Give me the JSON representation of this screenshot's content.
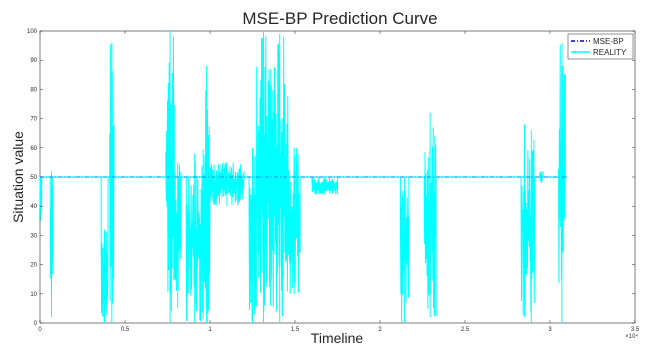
{
  "chart_data": {
    "type": "line",
    "title": "MSE-BP Prediction Curve",
    "xlabel": "Timeline",
    "ylabel": "Situation value",
    "x_exponent_label": "×10⁴",
    "xlim": [
      0,
      3.5
    ],
    "ylim": [
      0,
      100
    ],
    "x_ticks": [
      0,
      0.5,
      1,
      1.5,
      2,
      2.5,
      3,
      3.5
    ],
    "x_tick_labels": [
      "0",
      "0.5",
      "1",
      "1.5",
      "2",
      "2.5",
      "3",
      "3.5"
    ],
    "y_ticks": [
      0,
      10,
      20,
      30,
      40,
      50,
      60,
      70,
      80,
      90,
      100
    ],
    "y_tick_labels": [
      "0",
      "10",
      "20",
      "30",
      "40",
      "50",
      "60",
      "70",
      "80",
      "90",
      "100"
    ],
    "x_end": 3.1,
    "grid": false,
    "legend_position": "top-right",
    "series": [
      {
        "name": "MSE-BP",
        "color": "#0000cc",
        "style": "dash-dot",
        "baseline": 50,
        "segments": [
          [
            0.0,
            3.1
          ]
        ]
      },
      {
        "name": "REALITY",
        "color": "#00ffff",
        "style": "solid",
        "baseline": 50,
        "bursts": [
          {
            "x0": 0.0,
            "x1": 0.01,
            "min": 35,
            "max": 50
          },
          {
            "x0": 0.06,
            "x1": 0.075,
            "min": 2,
            "max": 52
          },
          {
            "x0": 0.36,
            "x1": 0.4,
            "min": 0,
            "max": 32
          },
          {
            "x0": 0.41,
            "x1": 0.435,
            "min": 0,
            "max": 96
          },
          {
            "x0": 0.74,
            "x1": 0.79,
            "min": 0,
            "max": 100
          },
          {
            "x0": 0.79,
            "x1": 0.83,
            "min": 5,
            "max": 55
          },
          {
            "x0": 0.86,
            "x1": 0.96,
            "min": 0,
            "max": 58
          },
          {
            "x0": 0.96,
            "x1": 1.0,
            "min": 0,
            "max": 88
          },
          {
            "x0": 1.0,
            "x1": 1.2,
            "min": 40,
            "max": 55
          },
          {
            "x0": 1.23,
            "x1": 1.27,
            "min": 0,
            "max": 60
          },
          {
            "x0": 1.27,
            "x1": 1.36,
            "min": 0,
            "max": 100
          },
          {
            "x0": 1.36,
            "x1": 1.46,
            "min": 0,
            "max": 99
          },
          {
            "x0": 1.46,
            "x1": 1.53,
            "min": 10,
            "max": 60
          },
          {
            "x0": 1.6,
            "x1": 1.75,
            "min": 44,
            "max": 50
          },
          {
            "x0": 2.12,
            "x1": 2.17,
            "min": 0,
            "max": 50
          },
          {
            "x0": 2.26,
            "x1": 2.33,
            "min": 2,
            "max": 72
          },
          {
            "x0": 2.83,
            "x1": 2.87,
            "min": 2,
            "max": 68
          },
          {
            "x0": 2.87,
            "x1": 2.91,
            "min": 0,
            "max": 66
          },
          {
            "x0": 2.94,
            "x1": 2.96,
            "min": 48,
            "max": 52
          },
          {
            "x0": 3.05,
            "x1": 3.09,
            "min": 0,
            "max": 96
          }
        ]
      }
    ]
  }
}
